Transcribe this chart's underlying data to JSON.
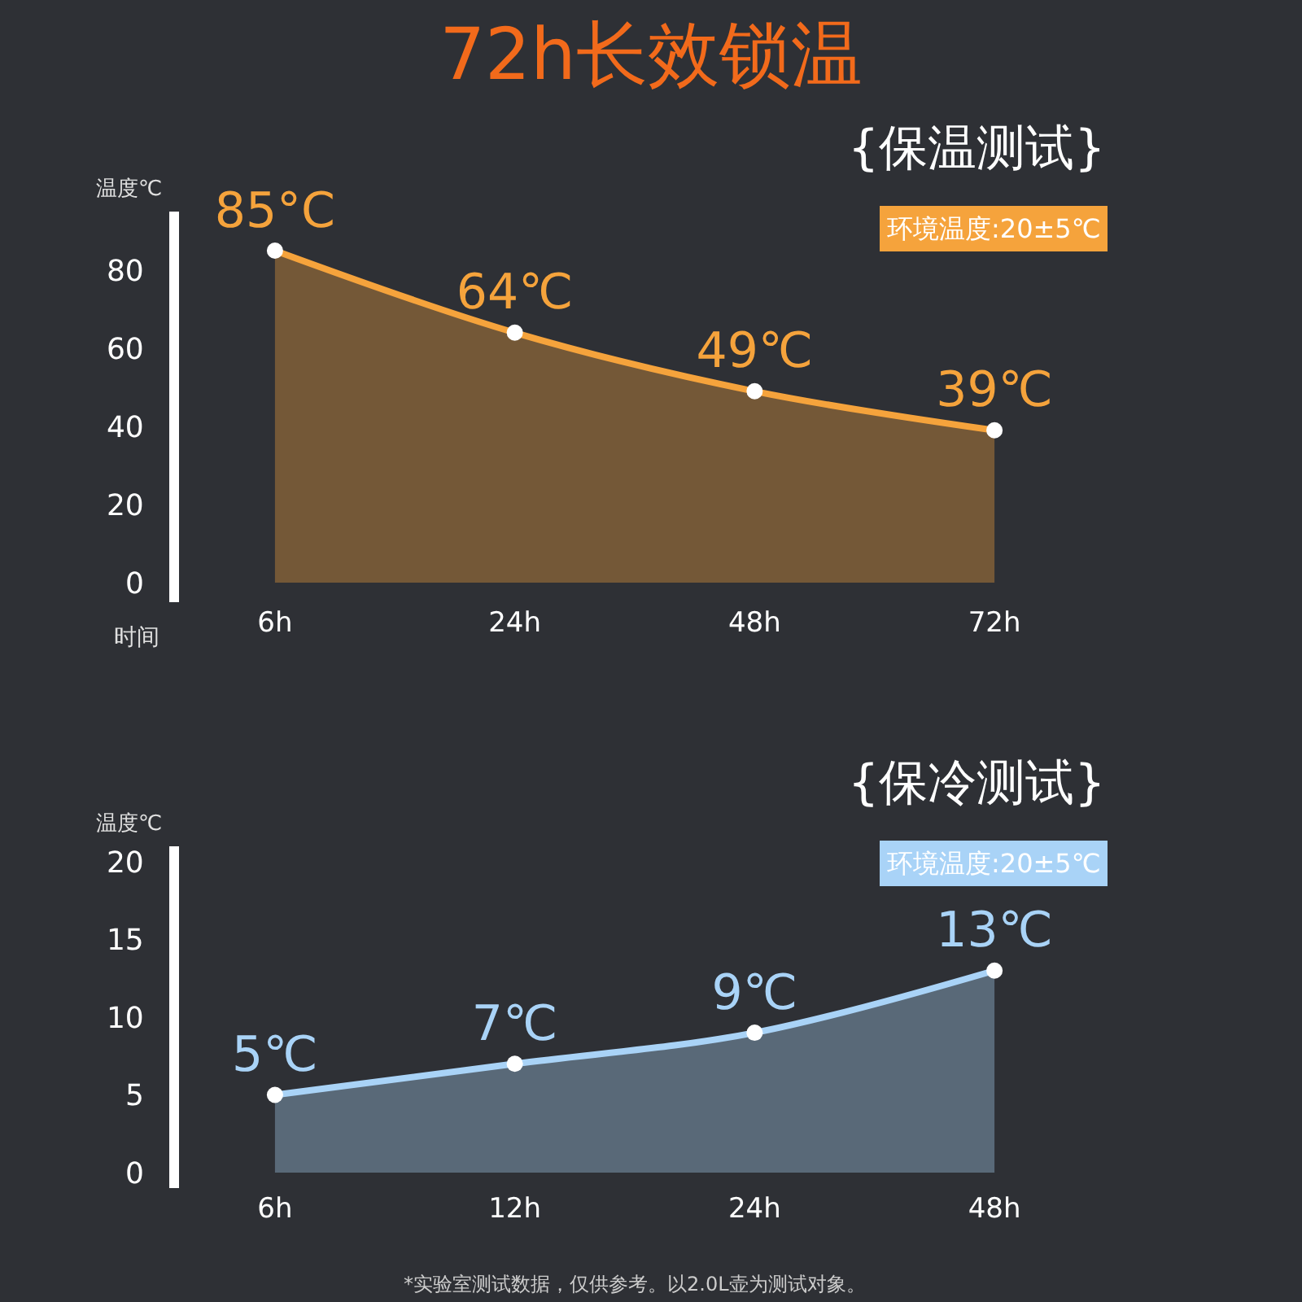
{
  "chart_data": [
    {
      "type": "area",
      "title": "72h长效锁温",
      "ylabel": "温度℃",
      "xlabel": "时间",
      "categories": [
        "6h",
        "24h",
        "48h",
        "72h"
      ],
      "values": [
        85,
        64,
        49,
        39
      ],
      "value_labels": [
        "85°C",
        "64℃",
        "49℃",
        "39℃"
      ],
      "color": "#f5a33c",
      "marker": "circle",
      "ylim": [
        -5,
        95
      ],
      "yticks": [
        0,
        20,
        40,
        60,
        80
      ],
      "annotations": [
        "{保温测试}",
        "环境温度:20±5℃"
      ]
    },
    {
      "type": "area",
      "ylabel": "温度℃",
      "categories": [
        "6h",
        "12h",
        "24h",
        "48h"
      ],
      "values": [
        5,
        7,
        9,
        13
      ],
      "value_labels": [
        "5℃",
        "7℃",
        "9℃",
        "13℃"
      ],
      "color": "#a9d3f7",
      "marker": "circle",
      "ylim": [
        -1,
        21
      ],
      "yticks": [
        0,
        5,
        10,
        15,
        20
      ],
      "annotations": [
        "{保冷测试}",
        "环境温度:20±5℃",
        "*实验室测试数据，仅供参考。以2.0L壶为测试对象。"
      ]
    }
  ]
}
